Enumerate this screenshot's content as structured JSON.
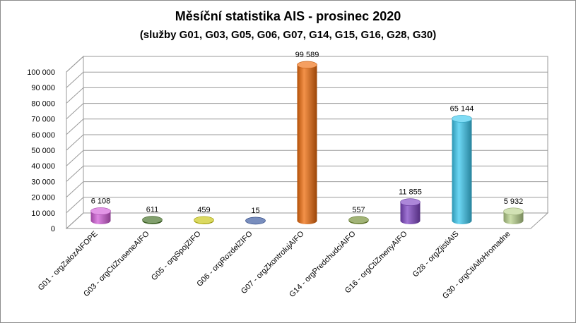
{
  "chart_data": {
    "type": "bar",
    "style": "3d-cylinder",
    "title": "Měsíční statistika AIS -  prosinec 2020",
    "subtitle": "(služby G01, G03, G05, G06, G07,  G14, G15, G16, G28, G30)",
    "categories": [
      "G01 - orgZalozAIFOPE",
      "G03 - orgCtiZruseneAIFO",
      "G05 - orgSpojZIFO",
      "G06 - orgRozdelZIFO",
      "G07 - orgZkontrolujAIFO",
      "G14 - orgPredchudciAIFO",
      "G16 - orgCtiZmenyAIFO",
      "G28 - orgZjistiAIS",
      "G30 - orgCtiAifoHromadne"
    ],
    "values": [
      6108,
      611,
      459,
      15,
      99589,
      557,
      11855,
      65144,
      5932
    ],
    "data_labels": [
      "6 108",
      "611",
      "459",
      "15",
      "99 589",
      "557",
      "11 855",
      "65 144",
      "5 932"
    ],
    "ylim": [
      0,
      100000
    ],
    "yticks": [
      0,
      10000,
      20000,
      30000,
      40000,
      50000,
      60000,
      70000,
      80000,
      90000,
      100000
    ],
    "ytick_labels": [
      "0",
      "10 000",
      "20 000",
      "30 000",
      "40 000",
      "50 000",
      "60 000",
      "70 000",
      "80 000",
      "90 000",
      "100 000"
    ],
    "grid": true,
    "legend": "none",
    "colors": [
      "#d25ed8",
      "#3d6b1f",
      "#c7c40a",
      "#2f4f9a",
      "#ef6c0c",
      "#6f8a2c",
      "#7f46c4",
      "#3cc9f0",
      "#b9d38d"
    ],
    "xlabel": "",
    "ylabel": ""
  }
}
